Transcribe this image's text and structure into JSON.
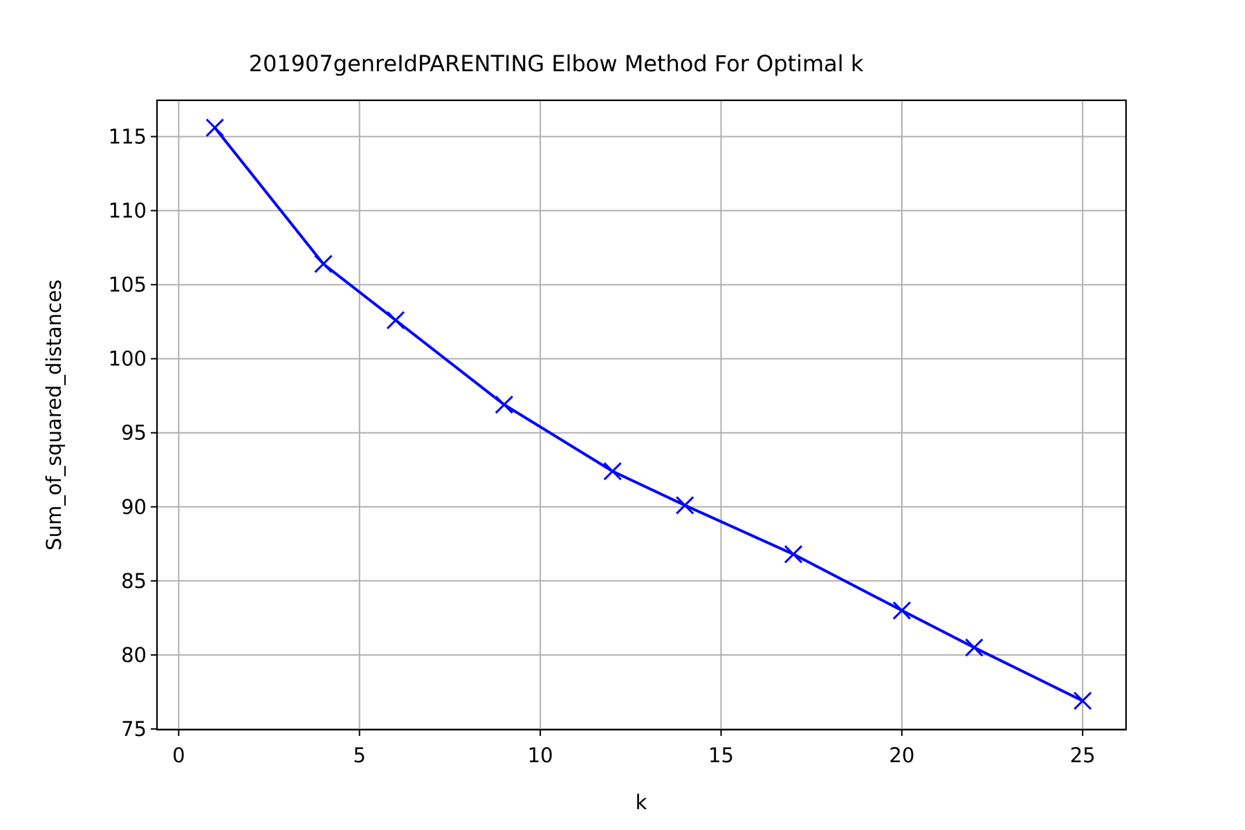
{
  "chart_data": {
    "type": "line",
    "title": "201907genreIdPARENTING Elbow Method For Optimal k",
    "xlabel": "k",
    "ylabel": "Sum_of_squared_distances",
    "xlim": [
      -0.6,
      26.2
    ],
    "ylim": [
      74.95,
      117.45
    ],
    "xticks": [
      0,
      5,
      10,
      15,
      20,
      25
    ],
    "yticks": [
      75,
      80,
      85,
      90,
      95,
      100,
      105,
      110,
      115
    ],
    "grid": true,
    "series": [
      {
        "color": "#0000ff",
        "marker": "x",
        "x": [
          1,
          4,
          6,
          9,
          12,
          14,
          17,
          20,
          22,
          25
        ],
        "y": [
          115.6,
          106.4,
          102.6,
          96.9,
          92.4,
          90.1,
          86.8,
          83.0,
          80.5,
          76.9
        ]
      }
    ]
  }
}
